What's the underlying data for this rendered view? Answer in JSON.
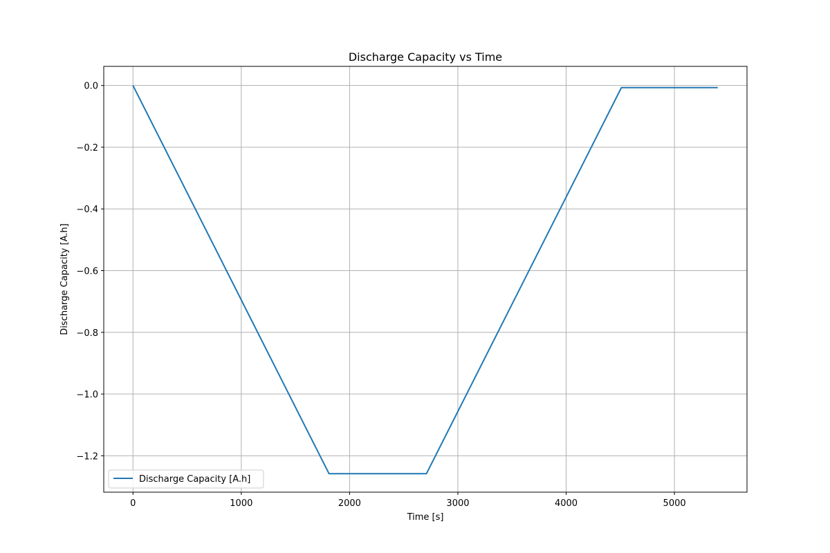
{
  "chart_data": {
    "type": "line",
    "title": "Discharge Capacity vs Time",
    "xlabel": "Time [s]",
    "ylabel": "Discharge Capacity [A.h]",
    "xlim": [
      -270,
      5670
    ],
    "ylim": [
      -1.318,
      0.062
    ],
    "xticks": [
      0,
      1000,
      2000,
      3000,
      4000,
      5000
    ],
    "yticks": [
      0.0,
      -0.2,
      -0.4,
      -0.6,
      -0.8,
      -1.0,
      -1.2
    ],
    "xtick_labels": [
      "0",
      "1000",
      "2000",
      "3000",
      "4000",
      "5000"
    ],
    "ytick_labels": [
      "0.0",
      "−0.2",
      "−0.4",
      "−0.6",
      "−0.8",
      "−1.0",
      "−1.2"
    ],
    "grid": true,
    "legend_position": "lower-left",
    "series": [
      {
        "name": "Discharge Capacity [A.h]",
        "color": "#1f77b4",
        "x": [
          0,
          1810,
          2710,
          4510,
          5400
        ],
        "y": [
          0.0,
          -1.258,
          -1.258,
          -0.007,
          -0.007
        ]
      }
    ]
  }
}
